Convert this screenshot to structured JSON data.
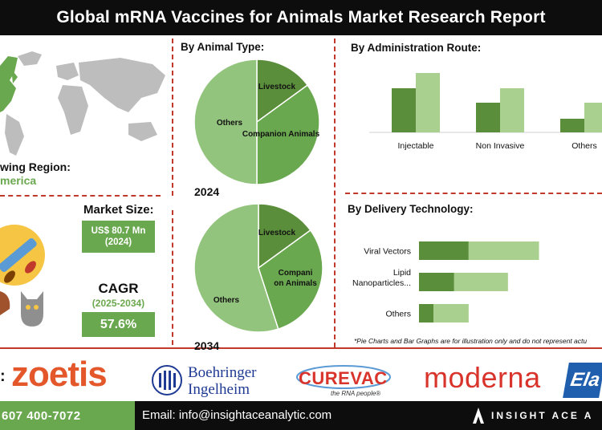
{
  "header": {
    "title": "Global mRNA Vaccines for Animals Market Research Report"
  },
  "region": {
    "label": "Fastest Growing Region:",
    "label_visible": "wing Region:",
    "value": "North America",
    "value_visible": "merica"
  },
  "market_size": {
    "label": "Market Size:",
    "value": "US$ 80.7 Mn",
    "year": "(2024)"
  },
  "cagr": {
    "label": "CAGR",
    "years": "(2025-2034)",
    "value": "57.6%"
  },
  "disclaimer": "*Pie Charts and Bar Graphs are for illustration only and do not represent actu",
  "logos": {
    "zoetis": "zoetis",
    "boehringer_line1": "Boehringer",
    "boehringer_line2": "Ingelheim",
    "curevac": "CUREVAC",
    "curevac_tagline": "the RNA people®",
    "moderna": "moderna",
    "elanco": "Ela"
  },
  "footer": {
    "phone": "607 400-7072",
    "email": "Email: info@insightaceanalytic.com",
    "brand": "INSIGHT ACE A"
  },
  "colors": {
    "dark_green": "#5a8e3a",
    "mid_green": "#6aa84f",
    "light_green": "#a9d08e",
    "pie_light": "#93c47d",
    "accent_red": "#c0392b"
  },
  "chart_data": [
    {
      "type": "pie",
      "title": "By Animal Type:",
      "year_label": "2024",
      "slices": [
        {
          "label": "Livestock",
          "value": 15,
          "color": "#5a8e3a"
        },
        {
          "label": "Companion Animals",
          "value": 35,
          "color": "#6aa84f"
        },
        {
          "label": "Others",
          "value": 50,
          "color": "#93c47d"
        }
      ]
    },
    {
      "type": "pie",
      "year_label": "2034",
      "slices": [
        {
          "label": "Livestock",
          "value": 15,
          "color": "#5a8e3a"
        },
        {
          "label": "Compani",
          "label_line2": "on Animals",
          "value": 30,
          "color": "#6aa84f"
        },
        {
          "label": "Others",
          "value": 55,
          "color": "#93c47d"
        }
      ]
    },
    {
      "type": "bar",
      "title": "By Administration Route:",
      "categories": [
        "Injectable",
        "Non Invasive",
        "Others"
      ],
      "series": [
        {
          "values": [
            55,
            37,
            17
          ],
          "color": "#5a8e3a"
        },
        {
          "values": [
            74,
            55,
            37
          ],
          "color": "#a9d08e"
        }
      ],
      "ylim": [
        0,
        80
      ]
    },
    {
      "type": "bar",
      "orientation": "horizontal-stacked",
      "title": "By Delivery Technology:",
      "categories": [
        "Viral Vectors",
        "Lipid Nanoparticles...",
        "Others"
      ],
      "category_labels": [
        [
          "Viral Vectors"
        ],
        [
          "Lipid",
          "Nanoparticles..."
        ],
        [
          "Others"
        ]
      ],
      "series": [
        {
          "values": [
            24,
            17,
            7
          ],
          "color": "#5a8e3a"
        },
        {
          "values": [
            34,
            26,
            17
          ],
          "color": "#a9d08e"
        }
      ],
      "xlim": [
        0,
        90
      ]
    }
  ]
}
